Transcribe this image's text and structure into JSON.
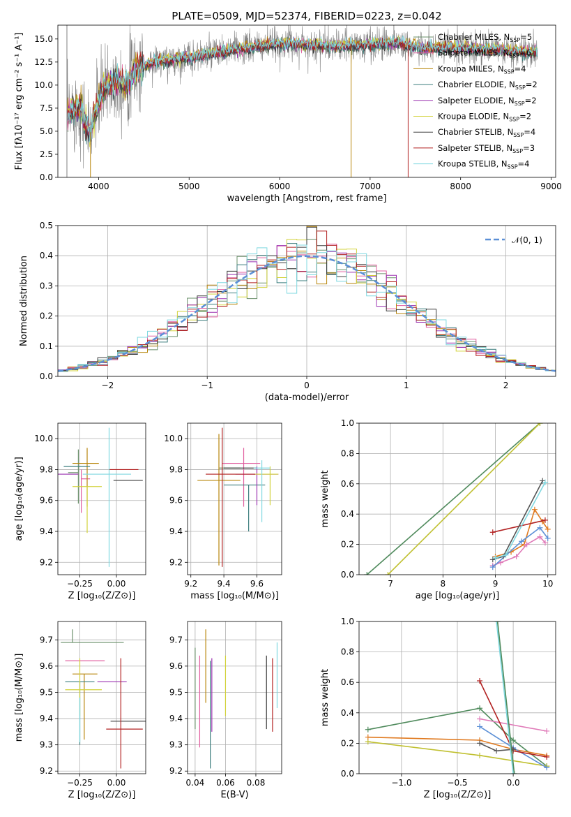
{
  "figure": {
    "title": "PLATE=0509, MJD=52374, FIBERID=0223, z=0.042"
  },
  "colors": {
    "series": [
      "#6a8f6a",
      "#e15fa0",
      "#b8860b",
      "#3b7d7d",
      "#9b30b0",
      "#d2d23a",
      "#3a3a3a",
      "#b22222",
      "#7fd8e0"
    ],
    "observed_spectrum": "#808080",
    "gaussian": "#5b8fd6"
  },
  "chart_data": [
    {
      "type": "line",
      "panel": "spectrum",
      "xlabel": "wavelength [Angstrom, rest frame]",
      "ylabel": "Flux [fλ10⁻¹⁷ erg cm⁻² s⁻¹ A⁻¹]",
      "xlim": [
        3550,
        9050
      ],
      "ylim": [
        0,
        16.5
      ],
      "xticks": [
        "4000",
        "5000",
        "6000",
        "7000",
        "8000",
        "9000"
      ],
      "yticks": [
        "0.0",
        "2.5",
        "5.0",
        "7.5",
        "10.0",
        "12.5",
        "15.0"
      ],
      "legend_position": "upper right",
      "legend": [
        "Chabrier MILES, N_SSP=5",
        "Salpeter MILES, N_SSP=6",
        "Kroupa MILES, N_SSP=4",
        "Chabrier ELODIE, N_SSP=2",
        "Salpeter ELODIE, N_SSP=2",
        "Kroupa ELODIE, N_SSP=2",
        "Chabrier STELIB, N_SSP=4",
        "Salpeter STELIB, N_SSP=3",
        "Kroupa STELIB, N_SSP=4"
      ],
      "continuum": {
        "x": [
          3650,
          3700,
          3800,
          3900,
          4000,
          4100,
          4200,
          4300,
          4400,
          4600,
          4800,
          5000,
          5200,
          5500,
          5800,
          6100,
          6400,
          6700,
          7000,
          7300,
          7600,
          8000,
          8400,
          8800
        ],
        "y": [
          6.5,
          7.5,
          7.5,
          4.5,
          8.5,
          10.0,
          10.5,
          10.0,
          11.5,
          12.5,
          12.7,
          13.0,
          13.3,
          13.8,
          14.2,
          14.5,
          14.3,
          14.2,
          14.4,
          14.6,
          14.0,
          14.0,
          13.8,
          13.5
        ]
      },
      "lines": [
        3650,
        3910,
        6790,
        7420
      ]
    },
    {
      "type": "bar",
      "panel": "residuals",
      "xlabel": "(data-model)/error",
      "ylabel": "Normed distribution",
      "xlim": [
        -2.5,
        2.5
      ],
      "ylim": [
        0,
        0.5
      ],
      "xticks": [
        "−2",
        "−1",
        "0",
        "1",
        "2"
      ],
      "yticks": [
        "0.0",
        "0.1",
        "0.2",
        "0.3",
        "0.4",
        "0.5"
      ],
      "legend": [
        "𝒩(0, 1)"
      ],
      "legend_position": "upper right",
      "bin_width": 0.1
    },
    {
      "type": "scatter",
      "panel": "age-Z",
      "xlabel": "Z [log₁₀(Z/Z⊙)]",
      "ylabel": "age  [log₁₀(age/yr)]",
      "xlim": [
        -0.4,
        0.2
      ],
      "ylim": [
        9.12,
        10.1
      ],
      "xticks": [
        "−0.25",
        "0.00"
      ],
      "yticks": [
        "9.2",
        "9.4",
        "9.6",
        "9.8",
        "10.0"
      ],
      "points": [
        {
          "x": -0.26,
          "y": 9.78,
          "xerr": [
            0.07,
            0.0
          ],
          "yerr": [
            0.2,
            0.15
          ]
        },
        {
          "x": -0.24,
          "y": 9.74,
          "xerr": [
            0.0,
            0.06
          ],
          "yerr": [
            0.22,
            0.06
          ]
        },
        {
          "x": -0.2,
          "y": 9.84,
          "xerr": [
            0.1,
            0.08
          ],
          "yerr": [
            0.28,
            0.1
          ]
        },
        {
          "x": -0.3,
          "y": 9.82,
          "xerr": [
            0.06,
            0.12
          ],
          "yerr": [
            0.0,
            0.0
          ]
        },
        {
          "x": -0.38,
          "y": 9.77,
          "xerr": [
            0.02,
            0.12
          ],
          "yerr": [
            0.0,
            0.0
          ]
        },
        {
          "x": -0.2,
          "y": 9.69,
          "xerr": [
            0.1,
            0.1
          ],
          "yerr": [
            0.3,
            0.0
          ]
        },
        {
          "x": 0.08,
          "y": 9.73,
          "xerr": [
            0.1,
            0.1
          ],
          "yerr": [
            0.0,
            0.0
          ]
        },
        {
          "x": 0.05,
          "y": 9.8,
          "xerr": [
            0.1,
            0.1
          ],
          "yerr": [
            0.0,
            0.0
          ]
        },
        {
          "x": -0.05,
          "y": 9.77,
          "xerr": [
            0.18,
            0.15
          ],
          "yerr": [
            0.6,
            0.3
          ]
        }
      ]
    },
    {
      "type": "scatter",
      "panel": "age-mass",
      "xlabel": "mass [log₁₀(M/M⊙)]",
      "ylabel": "",
      "xlim": [
        9.18,
        9.75
      ],
      "ylim": [
        9.12,
        10.1
      ],
      "xticks": [
        "9.2",
        "9.4",
        "9.6"
      ],
      "yticks": [
        "9.2",
        "9.4",
        "9.6",
        "9.8",
        "10.0"
      ],
      "points": [
        {
          "x": 9.5,
          "y": 9.81,
          "xerr": [
            0.13,
            0.0
          ],
          "yerr": [
            0.0,
            0.0
          ]
        },
        {
          "x": 9.52,
          "y": 9.84,
          "xerr": [
            0.13,
            0.1
          ],
          "yerr": [
            0.28,
            0.1
          ]
        },
        {
          "x": 9.37,
          "y": 9.73,
          "xerr": [
            0.13,
            0.13
          ],
          "yerr": [
            0.55,
            0.3
          ]
        },
        {
          "x": 9.55,
          "y": 9.7,
          "xerr": [
            0.15,
            0.1
          ],
          "yerr": [
            0.3,
            0.0
          ]
        },
        {
          "x": 9.6,
          "y": 9.77,
          "xerr": [
            0.13,
            0.13
          ],
          "yerr": [
            0.2,
            0.05
          ]
        },
        {
          "x": 9.68,
          "y": 9.77,
          "xerr": [
            0.1,
            0.05
          ],
          "yerr": [
            0.2,
            0.05
          ]
        },
        {
          "x": 9.5,
          "y": 9.81,
          "xerr": [
            0.1,
            0.1
          ],
          "yerr": [
            0.0,
            0.0
          ]
        },
        {
          "x": 9.39,
          "y": 9.77,
          "xerr": [
            0.1,
            0.2
          ],
          "yerr": [
            0.6,
            0.3
          ]
        },
        {
          "x": 9.63,
          "y": 9.81,
          "xerr": [
            0.05,
            0.05
          ],
          "yerr": [
            0.35,
            0.05
          ]
        }
      ]
    },
    {
      "type": "line",
      "panel": "mass-weight-age",
      "xlabel": "age  [log₁₀(age/yr)]",
      "ylabel": "mass weight",
      "xlim": [
        6.4,
        10.15
      ],
      "ylim": [
        0,
        1
      ],
      "xticks": [
        "7",
        "8",
        "9",
        "10"
      ],
      "yticks": [
        "0.0",
        "0.2",
        "0.4",
        "0.6",
        "0.8",
        "1.0"
      ],
      "series": [
        {
          "x": [
            6.55,
            9.85
          ],
          "y": [
            0.0,
            1.0
          ]
        },
        {
          "x": [
            6.95,
            9.85
          ],
          "y": [
            0.0,
            1.0
          ]
        },
        {
          "x": [
            9.0,
            9.3,
            9.55,
            9.75,
            9.9,
            10.0
          ],
          "y": [
            0.12,
            0.15,
            0.2,
            0.43,
            0.35,
            0.3
          ]
        },
        {
          "x": [
            8.95,
            9.1,
            9.4,
            9.6,
            9.85,
            9.95
          ],
          "y": [
            0.06,
            0.08,
            0.12,
            0.2,
            0.25,
            0.21
          ]
        },
        {
          "x": [
            8.95,
            9.5,
            9.85,
            10.0
          ],
          "y": [
            0.05,
            0.22,
            0.31,
            0.24
          ]
        },
        {
          "x": [
            8.95,
            9.95
          ],
          "y": [
            0.28,
            0.36
          ]
        },
        {
          "x": [
            8.95,
            9.15,
            9.9
          ],
          "y": [
            0.1,
            0.12,
            0.62
          ]
        },
        {
          "x": [
            9.0,
            9.2,
            9.95
          ],
          "y": [
            0.11,
            0.13,
            0.61
          ]
        }
      ]
    },
    {
      "type": "scatter",
      "panel": "mass-Z",
      "xlabel": "Z [log₁₀(Z/Z⊙)]",
      "ylabel": "mass [log₁₀(M/M⊙)]",
      "xlim": [
        -0.4,
        0.2
      ],
      "ylim": [
        9.19,
        9.77
      ],
      "xticks": [
        "−0.25",
        "0.00"
      ],
      "yticks": [
        "9.2",
        "9.3",
        "9.4",
        "9.5",
        "9.6",
        "9.7"
      ],
      "points": [
        {
          "x": -0.3,
          "y": 9.69,
          "xerr": [
            0.08,
            0.35
          ],
          "yerr": [
            0.0,
            0.05
          ]
        },
        {
          "x": -0.28,
          "y": 9.62,
          "xerr": [
            0.07,
            0.2
          ],
          "yerr": [
            0.0,
            0.0
          ]
        },
        {
          "x": -0.22,
          "y": 9.57,
          "xerr": [
            0.08,
            0.09
          ],
          "yerr": [
            0.25,
            0.0
          ]
        },
        {
          "x": -0.25,
          "y": 9.54,
          "xerr": [
            0.1,
            0.1
          ],
          "yerr": [
            0.24,
            0.0
          ]
        },
        {
          "x": -0.05,
          "y": 9.54,
          "xerr": [
            0.08,
            0.12
          ],
          "yerr": [
            0.0,
            0.0
          ]
        },
        {
          "x": -0.25,
          "y": 9.51,
          "xerr": [
            0.1,
            0.15
          ],
          "yerr": [
            0.1,
            0.12
          ]
        },
        {
          "x": -0.02,
          "y": 9.39,
          "xerr": [
            0.02,
            0.22
          ],
          "yerr": [
            0.0,
            0.0
          ]
        },
        {
          "x": 0.03,
          "y": 9.36,
          "xerr": [
            0.1,
            0.15
          ],
          "yerr": [
            0.15,
            0.27
          ]
        },
        {
          "x": -0.25,
          "y": 9.36,
          "xerr": [
            0.0,
            0.0
          ],
          "yerr": [
            0.05,
            0.12
          ]
        }
      ]
    },
    {
      "type": "scatter",
      "panel": "mass-EBV",
      "xlabel": "E(B-V)",
      "ylabel": "",
      "xlim": [
        0.035,
        0.097
      ],
      "ylim": [
        9.19,
        9.77
      ],
      "xticks": [
        "0.04",
        "0.06",
        "0.08"
      ],
      "yticks": [
        "9.2",
        "9.3",
        "9.4",
        "9.5",
        "9.6",
        "9.7"
      ],
      "points": [
        {
          "x": 0.04,
          "y": 9.5,
          "yerr": [
            0.14,
            0.17
          ]
        },
        {
          "x": 0.043,
          "y": 9.45,
          "yerr": [
            0.16,
            0.19
          ]
        },
        {
          "x": 0.047,
          "y": 9.6,
          "yerr": [
            0.14,
            0.14
          ]
        },
        {
          "x": 0.05,
          "y": 9.4,
          "yerr": [
            0.19,
            0.22
          ]
        },
        {
          "x": 0.051,
          "y": 9.45,
          "yerr": [
            0.1,
            0.18
          ]
        },
        {
          "x": 0.06,
          "y": 9.52,
          "yerr": [
            0.11,
            0.12
          ]
        },
        {
          "x": 0.087,
          "y": 9.5,
          "yerr": [
            0.14,
            0.14
          ]
        },
        {
          "x": 0.091,
          "y": 9.48,
          "yerr": [
            0.13,
            0.15
          ]
        },
        {
          "x": 0.094,
          "y": 9.56,
          "yerr": [
            0.12,
            0.13
          ]
        }
      ]
    },
    {
      "type": "line",
      "panel": "mass-weight-Z",
      "xlabel": "Z [log₁₀(Z/Z⊙)]",
      "ylabel": "mass weight",
      "xlim": [
        -1.38,
        0.38
      ],
      "ylim": [
        0,
        1
      ],
      "xticks": [
        "−1.0",
        "−0.5",
        "0.0"
      ],
      "yticks": [
        "0.0",
        "0.2",
        "0.4",
        "0.6",
        "0.8",
        "1.0"
      ],
      "series": [
        {
          "x": [
            -1.3,
            -0.3,
            0.0,
            0.3
          ],
          "y": [
            0.29,
            0.43,
            0.22,
            0.05
          ]
        },
        {
          "x": [
            -1.3,
            -0.3,
            0.3
          ],
          "y": [
            0.21,
            0.12,
            0.05
          ]
        },
        {
          "x": [
            -1.3,
            -0.3,
            0.0,
            0.3
          ],
          "y": [
            0.24,
            0.22,
            0.16,
            0.12
          ]
        },
        {
          "x": [
            -0.3,
            0.3
          ],
          "y": [
            0.36,
            0.28
          ]
        },
        {
          "x": [
            -0.3,
            0.0,
            0.3
          ],
          "y": [
            0.31,
            0.17,
            0.04
          ]
        },
        {
          "x": [
            -0.3,
            0.0,
            0.3
          ],
          "y": [
            0.61,
            0.15,
            0.11
          ]
        },
        {
          "x": [
            -0.3,
            -0.15,
            0.0
          ],
          "y": [
            0.2,
            0.15,
            0.16
          ]
        },
        {
          "x": [
            -0.15,
            0.0
          ],
          "y": [
            1.0,
            0.0
          ]
        },
        {
          "x": [
            -0.14,
            0.01
          ],
          "y": [
            1.0,
            0.0
          ]
        }
      ]
    }
  ]
}
